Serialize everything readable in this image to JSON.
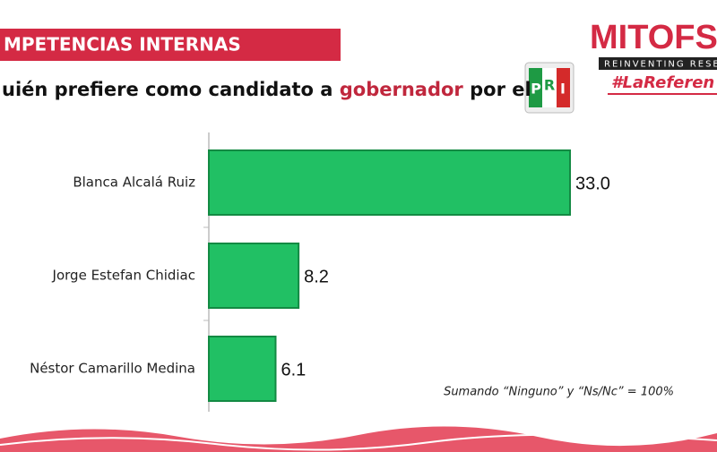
{
  "header": {
    "banner": "MPETENCIAS INTERNAS",
    "brand": "MITOFSI",
    "brand_tagline": "REINVENTING RESEA",
    "hashtag": "#LaReferen",
    "party_logo": [
      "P",
      "R",
      "I"
    ]
  },
  "chart_data": {
    "type": "hbar",
    "title_parts": [
      {
        "text": "uién prefiere como candidato a ",
        "color": "#111111"
      },
      {
        "text": "gobernador",
        "color": "#c0273d"
      },
      {
        "text": " por el",
        "color": "#111111"
      }
    ],
    "categories": [
      "Blanca Alcalá Ruiz",
      "Jorge Estefan Chidiac",
      "Néstor Camarillo Medina"
    ],
    "values": [
      33,
      8.2,
      6.1
    ],
    "value_labels": [
      "33.0",
      "8.2",
      "6.1"
    ],
    "color": "#21c064",
    "note": "Sumando “Ninguno” y “Ns/Nc” = 100%"
  }
}
